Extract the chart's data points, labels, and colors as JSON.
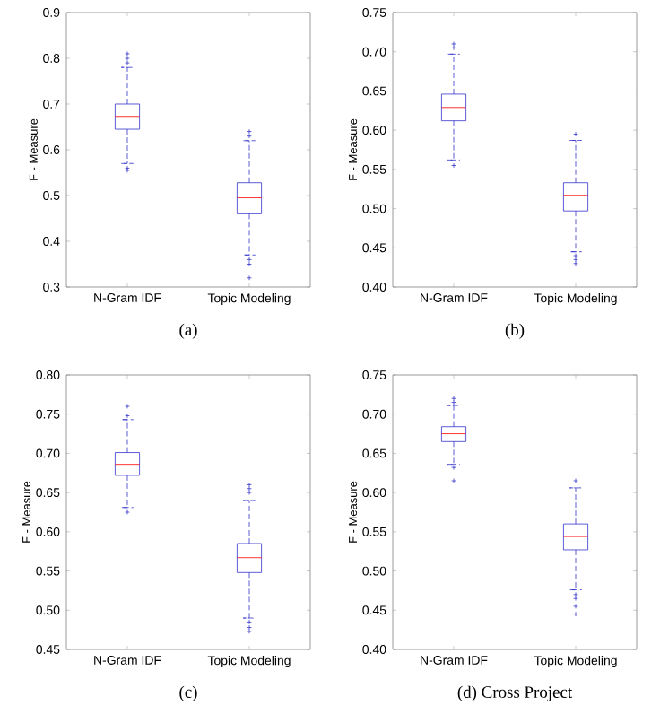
{
  "chart_data": [
    {
      "type": "box",
      "title": "(a)",
      "ylabel": "F - Measure",
      "categories": [
        "N-Gram IDF",
        "Topic Modeling"
      ],
      "ylim": [
        0.3,
        0.9
      ],
      "yticks": [
        0.3,
        0.4,
        0.5,
        0.6,
        0.7,
        0.8,
        0.9
      ],
      "marker": "cross",
      "series": [
        {
          "color": "#3333cc",
          "boxes": [
            {
              "low": 0.57,
              "q1": 0.645,
              "median": 0.673,
              "q3": 0.7,
              "high": 0.78,
              "outliers": [
                0.56,
                0.555,
                0.79,
                0.8,
                0.81
              ]
            },
            {
              "low": 0.37,
              "q1": 0.46,
              "median": 0.495,
              "q3": 0.528,
              "high": 0.62,
              "outliers": [
                0.36,
                0.35,
                0.32,
                0.63,
                0.64
              ]
            }
          ]
        }
      ]
    },
    {
      "type": "box",
      "title": "(b)",
      "ylabel": "F - Measure",
      "categories": [
        "N-Gram IDF",
        "Topic Modeling"
      ],
      "ylim": [
        0.4,
        0.75
      ],
      "yticks": [
        {
          "value": 0.4,
          "label": "0.40"
        },
        0.45,
        {
          "value": 0.5,
          "label": "0.50"
        },
        0.55,
        {
          "value": 0.6,
          "label": "0.60"
        },
        0.65,
        {
          "value": 0.7,
          "label": "0.70"
        },
        0.75
      ],
      "marker": "cross",
      "series": [
        {
          "color": "#3333cc",
          "boxes": [
            {
              "low": 0.562,
              "q1": 0.612,
              "median": 0.629,
              "q3": 0.646,
              "high": 0.697,
              "outliers": [
                0.555,
                0.705,
                0.71
              ]
            },
            {
              "low": 0.445,
              "q1": 0.497,
              "median": 0.517,
              "q3": 0.533,
              "high": 0.587,
              "outliers": [
                0.44,
                0.435,
                0.43,
                0.595
              ]
            }
          ]
        }
      ]
    },
    {
      "type": "box",
      "title": "(c)",
      "ylabel": "F - Measure",
      "categories": [
        "N-Gram IDF",
        "Topic Modeling"
      ],
      "ylim": [
        0.45,
        0.8
      ],
      "yticks": [
        0.45,
        {
          "value": 0.5,
          "label": "0.50"
        },
        0.55,
        {
          "value": 0.6,
          "label": "0.60"
        },
        0.65,
        {
          "value": 0.7,
          "label": "0.70"
        },
        0.75,
        {
          "value": 0.8,
          "label": "0.80"
        }
      ],
      "marker": "cross",
      "series": [
        {
          "color": "#3333cc",
          "boxes": [
            {
              "low": 0.631,
              "q1": 0.672,
              "median": 0.686,
              "q3": 0.701,
              "high": 0.743,
              "outliers": [
                0.625,
                0.748,
                0.76
              ]
            },
            {
              "low": 0.49,
              "q1": 0.548,
              "median": 0.567,
              "q3": 0.585,
              "high": 0.64,
              "outliers": [
                0.485,
                0.478,
                0.473,
                0.65,
                0.655,
                0.66
              ]
            }
          ]
        }
      ]
    },
    {
      "type": "box",
      "title": "(d) Cross Project",
      "ylabel": "F - Measure",
      "categories": [
        "N-Gram IDF",
        "Topic Modeling"
      ],
      "ylim": [
        0.4,
        0.75
      ],
      "yticks": [
        {
          "value": 0.4,
          "label": "0.40"
        },
        0.45,
        {
          "value": 0.5,
          "label": "0.50"
        },
        0.55,
        {
          "value": 0.6,
          "label": "0.60"
        },
        0.65,
        {
          "value": 0.7,
          "label": "0.70"
        },
        0.75
      ],
      "marker": "cross",
      "series": [
        {
          "color": "#3333cc",
          "boxes": [
            {
              "low": 0.636,
              "q1": 0.665,
              "median": 0.675,
              "q3": 0.684,
              "high": 0.711,
              "outliers": [
                0.632,
                0.615,
                0.715,
                0.72
              ]
            },
            {
              "low": 0.476,
              "q1": 0.527,
              "median": 0.544,
              "q3": 0.56,
              "high": 0.606,
              "outliers": [
                0.47,
                0.465,
                0.455,
                0.445,
                0.615
              ]
            }
          ]
        }
      ]
    }
  ]
}
